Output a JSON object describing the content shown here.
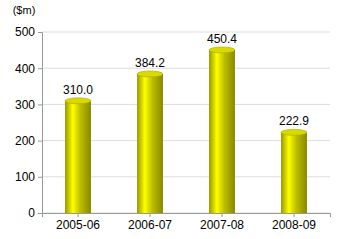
{
  "chart_data": {
    "type": "bar",
    "y_label": "($m)",
    "categories": [
      "2005-06",
      "2006-07",
      "2007-08",
      "2008-09"
    ],
    "values": [
      310.0,
      384.2,
      450.4,
      222.9
    ],
    "value_labels": [
      "310.0",
      "384.2",
      "450.4",
      "222.9"
    ],
    "color": "#bcbc00",
    "ylim": [
      0,
      500
    ],
    "yticks": [
      0,
      100,
      200,
      300,
      400,
      500
    ],
    "grid": true,
    "data_labels": true
  }
}
